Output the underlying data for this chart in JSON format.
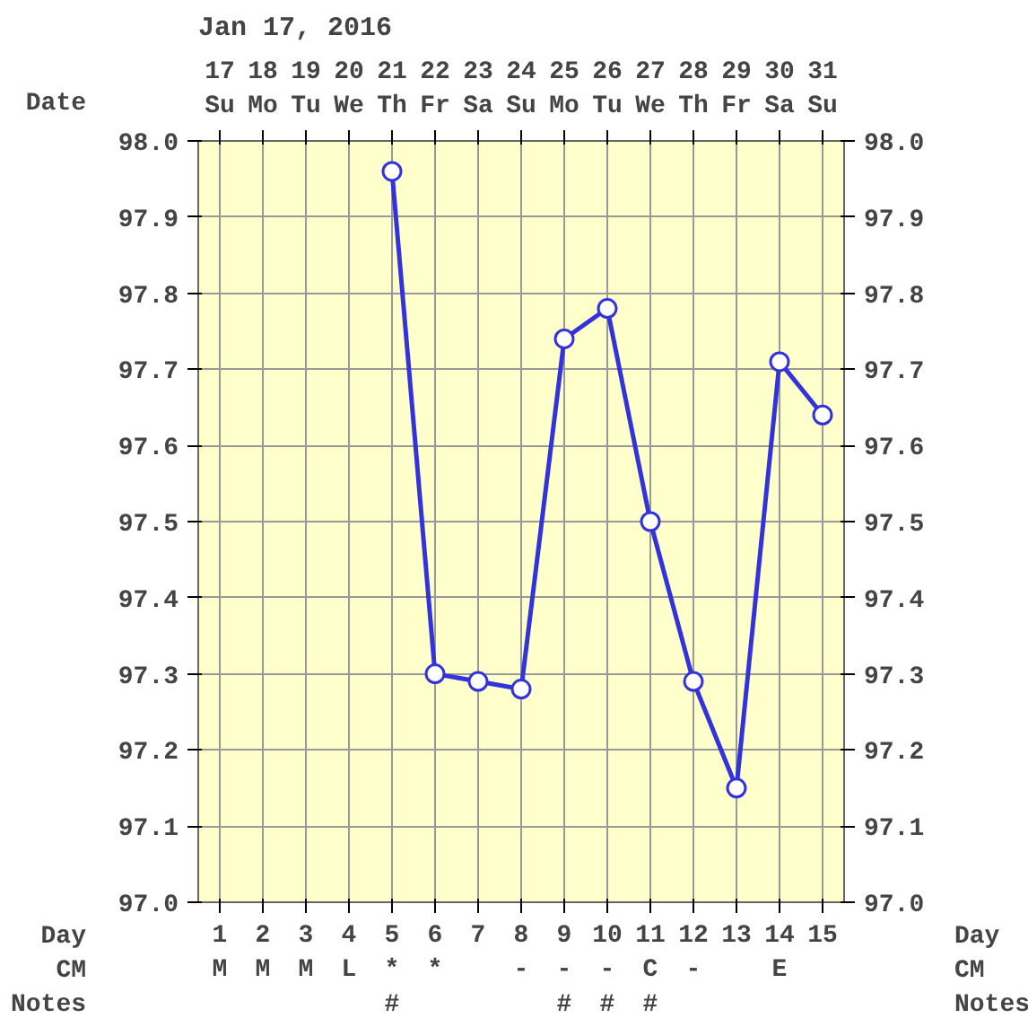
{
  "chart_data": {
    "type": "line",
    "title": "Jan 17, 2016",
    "categories": [
      "1\nM\n ",
      "2\nM\n ",
      "3\nM\n ",
      "4\nL\n ",
      "5\n*\n#",
      "6\n*\n ",
      "7\n \n ",
      "8\n-\n ",
      "9\n-\n#",
      "10\n-\n#",
      "11\nC\n#",
      "12\n-\n ",
      "13\n \n ",
      "14\nE\n ",
      "15\n \n "
    ],
    "series": [
      {
        "color": "#3333dd",
        "values": [
          null,
          null,
          null,
          null,
          97.96,
          97.3,
          97.29,
          97.28,
          97.74,
          97.78,
          97.5,
          97.29,
          97.15,
          97.71,
          97.64
        ]
      }
    ],
    "ylim": [
      97.0,
      98.0
    ],
    "yticks": [
      {
        "value": 97.0,
        "label": "97.0"
      },
      97.1,
      97.2,
      97.3,
      97.4,
      97.5,
      97.6,
      97.7,
      97.8,
      97.9,
      {
        "value": 98.0,
        "label": "98.0"
      }
    ],
    "y2lim": [
      97.0,
      98.0
    ],
    "y2ticks": [
      {
        "value": 97.0,
        "label": "97.0"
      },
      97.1,
      97.2,
      97.3,
      97.4,
      97.5,
      97.6,
      97.7,
      97.8,
      97.9,
      {
        "value": 98.0,
        "label": "98.0"
      }
    ],
    "x2lim": [
      16.5,
      31.5
    ],
    "x2ticks": [
      {
        "value": 17,
        "label": "17\nSu"
      },
      {
        "value": 18,
        "label": "18\nMo"
      },
      {
        "value": 19,
        "label": "19\nTu"
      },
      {
        "value": 20,
        "label": "20\nWe"
      },
      {
        "value": 21,
        "label": "21\nTh"
      },
      {
        "value": 22,
        "label": "22\nFr"
      },
      {
        "value": 23,
        "label": "23\nSa"
      },
      {
        "value": 24,
        "label": "24\nSu"
      },
      {
        "value": 25,
        "label": "25\nMo"
      },
      {
        "value": 26,
        "label": "26\nTu"
      },
      {
        "value": 27,
        "label": "27\nWe"
      },
      {
        "value": 28,
        "label": "28\nTh"
      },
      {
        "value": 29,
        "label": "29\nFr"
      },
      {
        "value": 30,
        "label": "30\nSa"
      },
      {
        "value": 31,
        "label": "31\nSu"
      }
    ],
    "annotations": [
      "Date",
      "Day\nCM\nNotes",
      "Day\nCM\nNotes"
    ],
    "grid": true,
    "marker": "circle",
    "line_style": "solid"
  }
}
